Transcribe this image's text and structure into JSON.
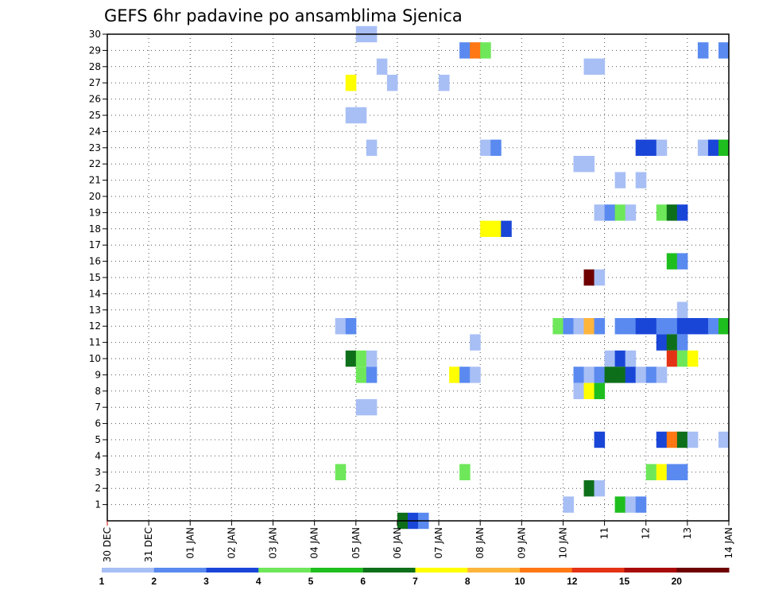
{
  "chart_data": {
    "type": "heatmap",
    "title": "GEFS 6hr padavine po ansamblima Sjenica",
    "xlabel": "",
    "ylabel": "",
    "x_ticks": [
      "30 DEC",
      "31 DEC",
      "01 JAN",
      "02 JAN",
      "03 JAN",
      "04 JAN",
      "05 JAN",
      "06 JAN",
      "07 JAN",
      "08 JAN",
      "09 JAN",
      "10 JAN",
      "11",
      "12",
      "13",
      "14 JAN"
    ],
    "y_ticks": [
      "1",
      "2",
      "3",
      "4",
      "5",
      "6",
      "7",
      "8",
      "9",
      "10",
      "11",
      "12",
      "13",
      "14",
      "15",
      "16",
      "17",
      "18",
      "19",
      "20",
      "21",
      "22",
      "23",
      "24",
      "25",
      "26",
      "27",
      "28",
      "29",
      "30"
    ],
    "x_range_days": [
      0,
      15
    ],
    "y_range": [
      0,
      30
    ],
    "grid": true,
    "legend": {
      "position": "bottom",
      "ticks": [
        "1",
        "2",
        "3",
        "4",
        "5",
        "6",
        "7",
        "8",
        "10",
        "12",
        "15",
        "20"
      ],
      "colors": [
        "#a8bff5",
        "#5a8af0",
        "#1a46d8",
        "#6ee85a",
        "#1fbe1f",
        "#0e6f1a",
        "#ffff00",
        "#ffb43c",
        "#ff7814",
        "#e43214",
        "#a80a0a",
        "#6e0000"
      ]
    },
    "cells": [
      {
        "m": 30,
        "x": 6.0,
        "v": 1
      },
      {
        "m": 30,
        "x": 6.25,
        "v": 1
      },
      {
        "m": 29,
        "x": 8.5,
        "v": 2
      },
      {
        "m": 29,
        "x": 8.75,
        "v": 10
      },
      {
        "m": 29,
        "x": 9.0,
        "v": 4
      },
      {
        "m": 29,
        "x": 14.25,
        "v": 2
      },
      {
        "m": 29,
        "x": 14.75,
        "v": 2
      },
      {
        "m": 28,
        "x": 6.5,
        "v": 1
      },
      {
        "m": 28,
        "x": 11.5,
        "v": 1
      },
      {
        "m": 28,
        "x": 11.75,
        "v": 1
      },
      {
        "m": 27,
        "x": 5.75,
        "v": 7
      },
      {
        "m": 27,
        "x": 6.75,
        "v": 1
      },
      {
        "m": 27,
        "x": 8.0,
        "v": 1
      },
      {
        "m": 25,
        "x": 5.75,
        "v": 1
      },
      {
        "m": 25,
        "x": 6.0,
        "v": 1
      },
      {
        "m": 23,
        "x": 6.25,
        "v": 1
      },
      {
        "m": 23,
        "x": 9.0,
        "v": 1
      },
      {
        "m": 23,
        "x": 9.25,
        "v": 2
      },
      {
        "m": 23,
        "x": 12.75,
        "v": 3
      },
      {
        "m": 23,
        "x": 13.0,
        "v": 3
      },
      {
        "m": 23,
        "x": 13.25,
        "v": 1
      },
      {
        "m": 23,
        "x": 14.25,
        "v": 1
      },
      {
        "m": 23,
        "x": 14.5,
        "v": 3
      },
      {
        "m": 23,
        "x": 14.75,
        "v": 5
      },
      {
        "m": 22,
        "x": 11.25,
        "v": 1
      },
      {
        "m": 22,
        "x": 11.5,
        "v": 1
      },
      {
        "m": 21,
        "x": 12.25,
        "v": 1
      },
      {
        "m": 21,
        "x": 12.75,
        "v": 1
      },
      {
        "m": 19,
        "x": 11.75,
        "v": 1
      },
      {
        "m": 19,
        "x": 12.0,
        "v": 2
      },
      {
        "m": 19,
        "x": 12.25,
        "v": 4
      },
      {
        "m": 19,
        "x": 12.5,
        "v": 1
      },
      {
        "m": 19,
        "x": 13.25,
        "v": 4
      },
      {
        "m": 19,
        "x": 13.5,
        "v": 6
      },
      {
        "m": 19,
        "x": 13.75,
        "v": 3
      },
      {
        "m": 18,
        "x": 9.0,
        "v": 7
      },
      {
        "m": 18,
        "x": 9.25,
        "v": 7
      },
      {
        "m": 18,
        "x": 9.5,
        "v": 3
      },
      {
        "m": 16,
        "x": 13.5,
        "v": 5
      },
      {
        "m": 16,
        "x": 13.75,
        "v": 2
      },
      {
        "m": 15,
        "x": 11.5,
        "v": 20
      },
      {
        "m": 15,
        "x": 11.75,
        "v": 1
      },
      {
        "m": 13,
        "x": 13.75,
        "v": 1
      },
      {
        "m": 12,
        "x": 5.5,
        "v": 1
      },
      {
        "m": 12,
        "x": 5.75,
        "v": 2
      },
      {
        "m": 12,
        "x": 10.75,
        "v": 4
      },
      {
        "m": 12,
        "x": 11.0,
        "v": 2
      },
      {
        "m": 12,
        "x": 11.25,
        "v": 1
      },
      {
        "m": 12,
        "x": 11.5,
        "v": 8
      },
      {
        "m": 12,
        "x": 11.75,
        "v": 2
      },
      {
        "m": 12,
        "x": 12.25,
        "v": 2
      },
      {
        "m": 12,
        "x": 12.5,
        "v": 2
      },
      {
        "m": 12,
        "x": 12.75,
        "v": 3
      },
      {
        "m": 12,
        "x": 13.0,
        "v": 3
      },
      {
        "m": 12,
        "x": 13.25,
        "v": 2
      },
      {
        "m": 12,
        "x": 13.5,
        "v": 2
      },
      {
        "m": 12,
        "x": 13.75,
        "v": 3
      },
      {
        "m": 12,
        "x": 14.0,
        "v": 3
      },
      {
        "m": 12,
        "x": 14.25,
        "v": 3
      },
      {
        "m": 12,
        "x": 14.5,
        "v": 2
      },
      {
        "m": 12,
        "x": 14.75,
        "v": 5
      },
      {
        "m": 11,
        "x": 8.75,
        "v": 1
      },
      {
        "m": 11,
        "x": 13.25,
        "v": 3
      },
      {
        "m": 11,
        "x": 13.5,
        "v": 6
      },
      {
        "m": 11,
        "x": 13.75,
        "v": 2
      },
      {
        "m": 10,
        "x": 5.75,
        "v": 6
      },
      {
        "m": 10,
        "x": 6.0,
        "v": 4
      },
      {
        "m": 10,
        "x": 6.25,
        "v": 1
      },
      {
        "m": 10,
        "x": 12.0,
        "v": 1
      },
      {
        "m": 10,
        "x": 12.25,
        "v": 3
      },
      {
        "m": 10,
        "x": 12.5,
        "v": 1
      },
      {
        "m": 10,
        "x": 13.5,
        "v": 12
      },
      {
        "m": 10,
        "x": 13.75,
        "v": 4
      },
      {
        "m": 10,
        "x": 14.0,
        "v": 7
      },
      {
        "m": 9,
        "x": 6.0,
        "v": 4
      },
      {
        "m": 9,
        "x": 6.25,
        "v": 2
      },
      {
        "m": 9,
        "x": 8.25,
        "v": 7
      },
      {
        "m": 9,
        "x": 8.5,
        "v": 2
      },
      {
        "m": 9,
        "x": 8.75,
        "v": 1
      },
      {
        "m": 9,
        "x": 11.25,
        "v": 2
      },
      {
        "m": 9,
        "x": 11.5,
        "v": 1
      },
      {
        "m": 9,
        "x": 11.75,
        "v": 2
      },
      {
        "m": 9,
        "x": 12.0,
        "v": 6
      },
      {
        "m": 9,
        "x": 12.25,
        "v": 6
      },
      {
        "m": 9,
        "x": 12.5,
        "v": 3
      },
      {
        "m": 9,
        "x": 12.75,
        "v": 1
      },
      {
        "m": 9,
        "x": 13.0,
        "v": 2
      },
      {
        "m": 9,
        "x": 13.25,
        "v": 1
      },
      {
        "m": 8,
        "x": 11.25,
        "v": 1
      },
      {
        "m": 8,
        "x": 11.5,
        "v": 7
      },
      {
        "m": 8,
        "x": 11.75,
        "v": 5
      },
      {
        "m": 7,
        "x": 6.0,
        "v": 1
      },
      {
        "m": 7,
        "x": 6.25,
        "v": 1
      },
      {
        "m": 5,
        "x": 11.75,
        "v": 3
      },
      {
        "m": 5,
        "x": 13.25,
        "v": 3
      },
      {
        "m": 5,
        "x": 13.5,
        "v": 10
      },
      {
        "m": 5,
        "x": 13.75,
        "v": 6
      },
      {
        "m": 5,
        "x": 14.0,
        "v": 1
      },
      {
        "m": 5,
        "x": 14.75,
        "v": 1
      },
      {
        "m": 3,
        "x": 5.5,
        "v": 4
      },
      {
        "m": 3,
        "x": 8.5,
        "v": 4
      },
      {
        "m": 3,
        "x": 13.0,
        "v": 4
      },
      {
        "m": 3,
        "x": 13.25,
        "v": 7
      },
      {
        "m": 3,
        "x": 13.5,
        "v": 2
      },
      {
        "m": 3,
        "x": 13.75,
        "v": 2
      },
      {
        "m": 2,
        "x": 11.5,
        "v": 6
      },
      {
        "m": 2,
        "x": 11.75,
        "v": 1
      },
      {
        "m": 1,
        "x": 11.0,
        "v": 1
      },
      {
        "m": 1,
        "x": 12.25,
        "v": 5
      },
      {
        "m": 1,
        "x": 12.5,
        "v": 1
      },
      {
        "m": 1,
        "x": 12.75,
        "v": 2
      },
      {
        "m": 0,
        "x": 7.0,
        "v": 6
      },
      {
        "m": 0,
        "x": 7.25,
        "v": 3
      },
      {
        "m": 0,
        "x": 7.5,
        "v": 2
      }
    ]
  }
}
